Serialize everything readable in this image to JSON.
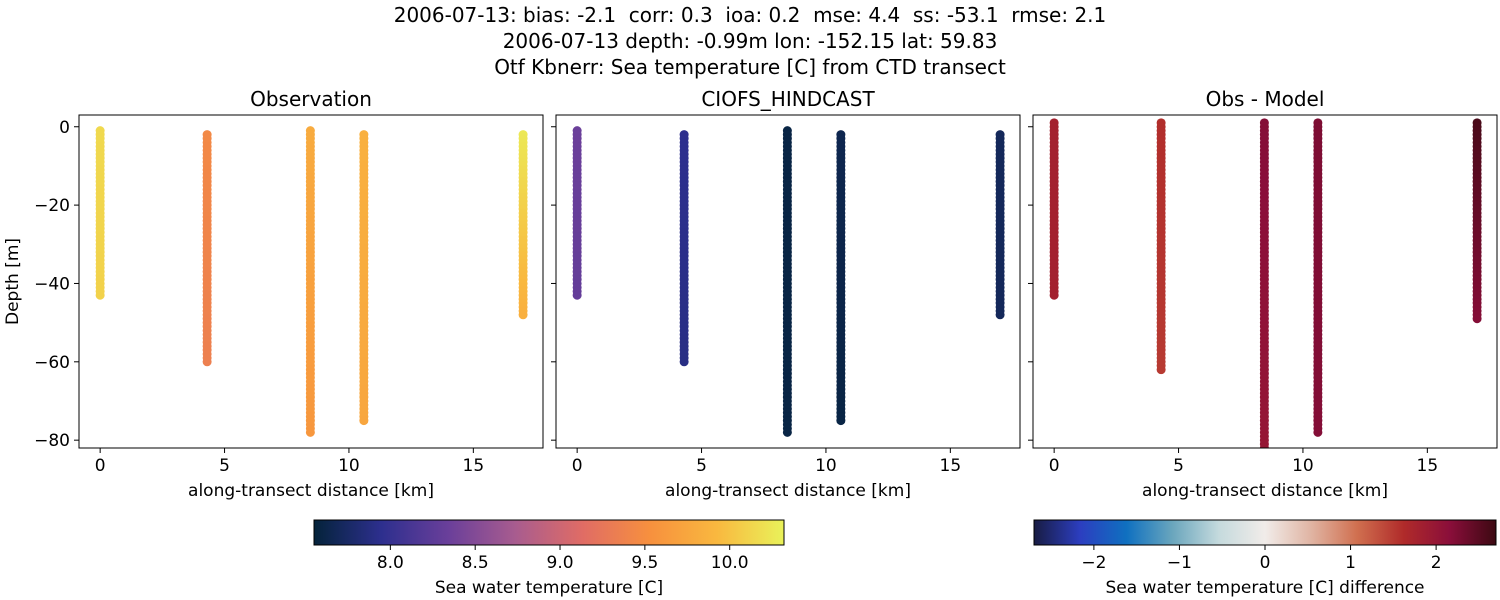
{
  "figure": {
    "title_lines": [
      "2006-07-13: bias: -2.1  corr: 0.3  ioa: 0.2  mse: 4.4  ss: -53.1  rmse: 2.1",
      "2006-07-13 depth: -0.99m lon: -152.15 lat: 59.83",
      "Otf Kbnerr: Sea temperature [C] from CTD transect"
    ]
  },
  "colors": {
    "thermal_stops": [
      "#04233a",
      "#2d2f8e",
      "#6a3f9a",
      "#a85c8f",
      "#e06c65",
      "#f7903e",
      "#f9b83f",
      "#e9f25a"
    ],
    "balance_stops": [
      "#181c43",
      "#2c3ec0",
      "#0f70c0",
      "#6aa6bd",
      "#c5dadd",
      "#f1ece9",
      "#e0b4a3",
      "#d06f4f",
      "#b02b2a",
      "#8a0e3a",
      "#3c0912"
    ],
    "axis": "#000000"
  },
  "chart_data": [
    {
      "type": "scatter",
      "title": "Observation",
      "xlabel": "along-transect distance [km]",
      "ylabel": "Depth [m]",
      "xlim": [
        -0.85,
        17.8
      ],
      "ylim": [
        -82,
        3
      ],
      "xticks": [
        0,
        5,
        10,
        15
      ],
      "yticks": [
        0,
        -20,
        -40,
        -60,
        -80
      ],
      "xtick_labels": [
        "0",
        "5",
        "10",
        "15"
      ],
      "ytick_labels": [
        "0",
        "−20",
        "−40",
        "−60",
        "−80"
      ],
      "colormap": "thermal",
      "clim": [
        7.55,
        10.32
      ],
      "profiles": [
        {
          "x": 0.0,
          "top": -1,
          "bottom": -43,
          "value_top": 10.15,
          "value_bottom": 10.1
        },
        {
          "x": 4.3,
          "top": -2,
          "bottom": -60,
          "value_top": 9.45,
          "value_bottom": 9.35
        },
        {
          "x": 8.45,
          "top": -1,
          "bottom": -78,
          "value_top": 9.8,
          "value_bottom": 9.6
        },
        {
          "x": 10.6,
          "top": -2,
          "bottom": -75,
          "value_top": 9.85,
          "value_bottom": 9.75
        },
        {
          "x": 17.0,
          "top": -2,
          "bottom": -48,
          "value_top": 10.25,
          "value_bottom": 9.85
        }
      ]
    },
    {
      "type": "scatter",
      "title": "CIOFS_HINDCAST",
      "xlabel": "along-transect distance [km]",
      "ylabel": "",
      "xlim": [
        -0.85,
        17.8
      ],
      "ylim": [
        -82,
        3
      ],
      "xticks": [
        0,
        5,
        10,
        15
      ],
      "yticks": [
        0,
        -20,
        -40,
        -60,
        -80
      ],
      "xtick_labels": [
        "0",
        "5",
        "10",
        "15"
      ],
      "ytick_labels": [],
      "colormap": "thermal",
      "clim": [
        7.55,
        10.32
      ],
      "profiles": [
        {
          "x": 0.0,
          "top": -1,
          "bottom": -43,
          "value_top": 8.35,
          "value_bottom": 8.3
        },
        {
          "x": 4.3,
          "top": -2,
          "bottom": -60,
          "value_top": 7.95,
          "value_bottom": 7.9
        },
        {
          "x": 8.45,
          "top": -1,
          "bottom": -78,
          "value_top": 7.6,
          "value_bottom": 7.6
        },
        {
          "x": 10.6,
          "top": -2,
          "bottom": -75,
          "value_top": 7.65,
          "value_bottom": 7.6
        },
        {
          "x": 17.0,
          "top": -2,
          "bottom": -48,
          "value_top": 7.7,
          "value_bottom": 7.7
        }
      ]
    },
    {
      "type": "scatter",
      "title": "Obs - Model",
      "xlabel": "along-transect distance [km]",
      "ylabel": "",
      "xlim": [
        -0.85,
        17.8
      ],
      "ylim": [
        -82,
        3
      ],
      "xticks": [
        0,
        5,
        10,
        15
      ],
      "yticks": [
        0,
        -20,
        -40,
        -60,
        -80
      ],
      "xtick_labels": [
        "0",
        "5",
        "10",
        "15"
      ],
      "ytick_labels": [],
      "colormap": "balance",
      "clim": [
        -2.7,
        2.7
      ],
      "profiles": [
        {
          "x": 0.0,
          "top": 1,
          "bottom": -43,
          "value_top": 1.8,
          "value_bottom": 1.8
        },
        {
          "x": 4.3,
          "top": 1,
          "bottom": -62,
          "value_top": 1.6,
          "value_bottom": 1.5
        },
        {
          "x": 8.45,
          "top": 1,
          "bottom": -82,
          "value_top": 2.2,
          "value_bottom": 2.0
        },
        {
          "x": 10.6,
          "top": 1,
          "bottom": -78,
          "value_top": 2.25,
          "value_bottom": 2.2
        },
        {
          "x": 17.0,
          "top": 1,
          "bottom": -49,
          "value_top": 2.6,
          "value_bottom": 2.2
        }
      ]
    }
  ],
  "colorbars": [
    {
      "label": "Sea water temperature [C]",
      "colormap": "thermal",
      "range": [
        7.55,
        10.32
      ],
      "ticks": [
        8.0,
        8.5,
        9.0,
        9.5,
        10.0
      ],
      "tick_labels": [
        "8.0",
        "8.5",
        "9.0",
        "9.5",
        "10.0"
      ]
    },
    {
      "label": "Sea water temperature [C] difference",
      "colormap": "balance",
      "range": [
        -2.7,
        2.7
      ],
      "ticks": [
        -2,
        -1,
        0,
        1,
        2
      ],
      "tick_labels": [
        "−2",
        "−1",
        "0",
        "1",
        "2"
      ]
    }
  ]
}
